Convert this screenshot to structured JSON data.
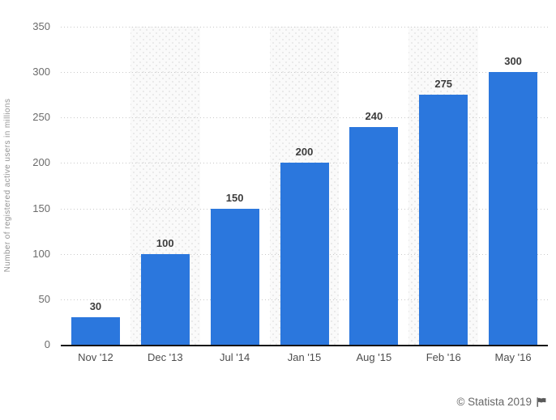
{
  "chart_data": {
    "type": "bar",
    "title": "",
    "xlabel": "",
    "ylabel": "Number of registered active users in millions",
    "categories": [
      "Nov '12",
      "Dec '13",
      "Jul '14",
      "Jan '15",
      "Aug '15",
      "Feb '16",
      "May '16"
    ],
    "values": [
      30,
      100,
      150,
      200,
      240,
      275,
      300
    ],
    "value_labels": [
      "30",
      "100",
      "150",
      "200",
      "240",
      "275",
      "300"
    ],
    "ylim": [
      0,
      350
    ],
    "yticks": [
      0,
      50,
      100,
      150,
      200,
      250,
      300,
      350
    ],
    "grid": "horizontal-dotted",
    "legend_position": "none",
    "striped_columns": [
      1,
      3,
      5
    ],
    "bar_color": "#2b77dd"
  },
  "colors": {
    "bar": "#2b77dd",
    "axis_line": "#151515",
    "gridline": "#c9c9c9",
    "stripe_background": "#fafafa",
    "stripe_dot": "#e4e4e4",
    "y_tick_label": "#6b6b6b",
    "x_tick_label": "#4d4d4d",
    "value_label": "#3c3c3c",
    "y_axis_title": "#949494",
    "attribution_text": "#666666"
  },
  "footer": {
    "attribution": "© Statista 2019",
    "flag_icon": "flag-icon"
  }
}
